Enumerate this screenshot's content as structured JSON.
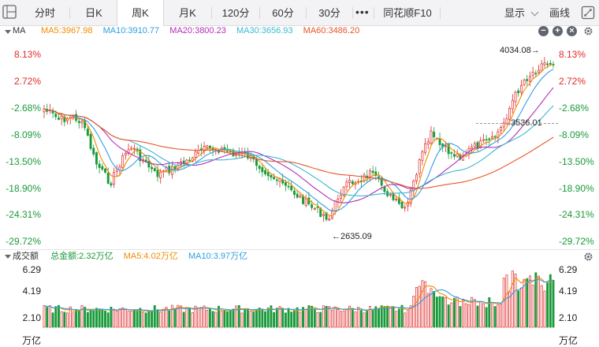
{
  "toolbar": {
    "tabs": [
      {
        "label": "分时",
        "active": false
      },
      {
        "label": "日K",
        "active": false
      },
      {
        "label": "周K",
        "active": true
      },
      {
        "label": "月K",
        "active": false
      },
      {
        "label": "120分",
        "active": false
      },
      {
        "label": "60分",
        "active": false
      },
      {
        "label": "30分",
        "active": false
      }
    ],
    "more_label": "•••",
    "f10_label": "同花顺F10",
    "display_label": "显示",
    "draw_label": "画线"
  },
  "main_legend": {
    "title": "MA",
    "ma5": "MA5:3967.98",
    "ma10": "MA10:3910.77",
    "ma20": "MA20:3800.23",
    "ma30": "MA30:3656.93",
    "ma60": "MA60:3486.20",
    "controls": [
      "−",
      "+",
      "×"
    ]
  },
  "volume_legend": {
    "title": "成交额",
    "total": "总金额:2.32万亿",
    "ma5": "MA5:4.02万亿",
    "ma10": "MA10:3.97万亿"
  },
  "colors": {
    "up": "#e02a2a",
    "down": "#1a9a3a",
    "ma5": "#f08c00",
    "ma10": "#2f9fe0",
    "ma20": "#b330b8",
    "ma30": "#3ab8d0",
    "ma60": "#e8552a"
  },
  "price_axis": {
    "left_labels": [
      "8.13%",
      "2.72%",
      "-2.68%",
      "-8.09%",
      "-13.50%",
      "-18.90%",
      "-24.31%",
      "-29.72%"
    ],
    "right_labels": [
      "8.13%",
      "2.72%",
      "-2.68%",
      "-8.09%",
      "-13.50%",
      "-18.90%",
      "-24.31%",
      "-29.72%"
    ]
  },
  "volume_axis": {
    "left_labels": [
      "6.29",
      "4.19",
      "2.10",
      "万亿"
    ],
    "right_labels": [
      "6.29",
      "4.19",
      "2.10",
      "万亿"
    ]
  },
  "annotations": {
    "high": "4034.08",
    "low": "2635.09",
    "last": "3536.01"
  },
  "chart_data": {
    "type": "candlestick",
    "y_axis": "percent change",
    "ylim_percent": [
      -29.72,
      8.13
    ],
    "high_value": 4034.08,
    "low_value": 2635.09,
    "last_marker": 3536.01,
    "ma_values": {
      "MA5": 3967.98,
      "MA10": 3910.77,
      "MA20": 3800.23,
      "MA30": 3656.93,
      "MA60": 3486.2
    },
    "volume": {
      "unit": "万亿",
      "ylim": [
        0,
        6.29
      ],
      "total": "2.32万亿",
      "MA5": "4.02万亿",
      "MA10": "3.97万亿"
    }
  }
}
